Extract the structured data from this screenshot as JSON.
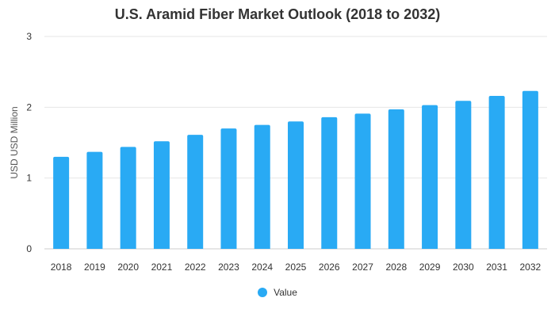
{
  "chart_data": {
    "type": "bar",
    "title": "U.S. Aramid Fiber Market Outlook (2018 to 2032)",
    "xlabel": "",
    "ylabel": "USD USD Million",
    "categories": [
      "2018",
      "2019",
      "2020",
      "2021",
      "2022",
      "2023",
      "2024",
      "2025",
      "2026",
      "2027",
      "2028",
      "2029",
      "2030",
      "2031",
      "2032"
    ],
    "series": [
      {
        "name": "Value",
        "values": [
          1.3,
          1.37,
          1.44,
          1.52,
          1.61,
          1.7,
          1.75,
          1.8,
          1.86,
          1.91,
          1.97,
          2.03,
          2.09,
          2.16,
          2.23
        ],
        "color": "#29aaf4"
      }
    ],
    "ylim": [
      0,
      3
    ],
    "yticks": [
      "0",
      "1",
      "2",
      "3"
    ],
    "grid": true,
    "legend_position": "bottom"
  }
}
